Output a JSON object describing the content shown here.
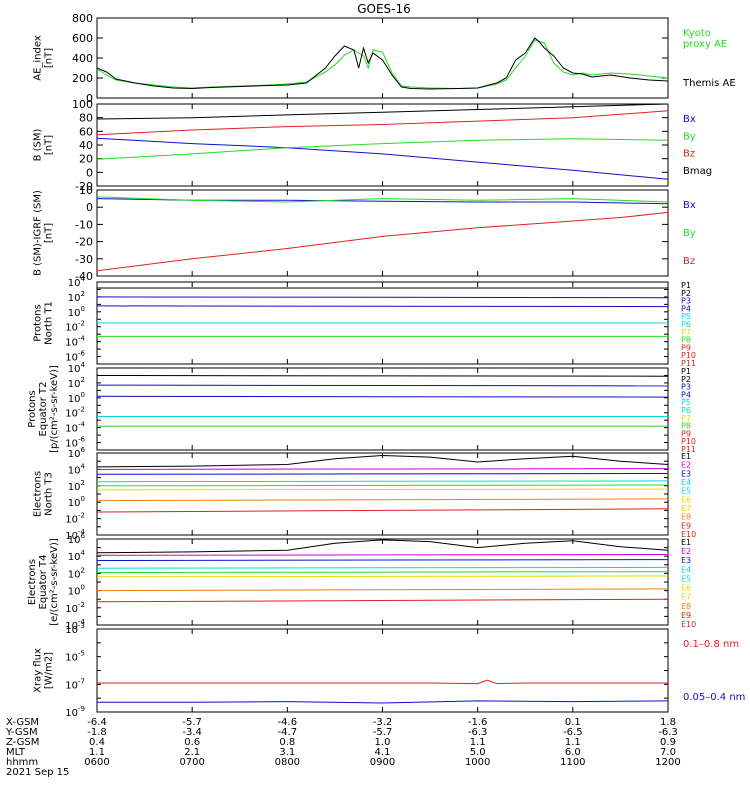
{
  "title": "GOES-16",
  "colors": {
    "black": "#000000",
    "red": "#e02020",
    "green": "#22dd22",
    "blue": "#1010d0",
    "cyan": "#00d8e0",
    "yellow": "#e8d800",
    "orange": "#f08000",
    "magenta": "#d000d0"
  },
  "chart_data": [
    {
      "type": "line",
      "id": "ae",
      "ylabel": [
        "AE_index",
        "[nT]"
      ],
      "ylim": [
        0,
        800
      ],
      "yticks": [
        0,
        200,
        400,
        600,
        800
      ],
      "ytick_labels": [
        "0",
        "200",
        "400",
        "600",
        "800"
      ],
      "series": [
        {
          "name": "Kyoto\nproxy AE",
          "color": "#22dd22",
          "x": [
            6.0,
            6.1,
            6.2,
            6.4,
            6.6,
            6.8,
            7.0,
            7.2,
            7.5,
            7.8,
            8.0,
            8.2,
            8.4,
            8.5,
            8.6,
            8.7,
            8.8,
            8.85,
            8.9,
            9.0,
            9.1,
            9.2,
            9.3,
            9.5,
            9.8,
            10.0,
            10.2,
            10.3,
            10.4,
            10.5,
            10.6,
            10.7,
            10.8,
            10.9,
            11.0,
            11.1,
            11.2,
            11.4,
            11.6,
            11.8,
            12.0
          ],
          "y": [
            290,
            230,
            180,
            150,
            130,
            110,
            100,
            110,
            120,
            130,
            140,
            160,
            260,
            330,
            430,
            480,
            420,
            300,
            480,
            460,
            250,
            120,
            110,
            100,
            95,
            100,
            140,
            180,
            300,
            420,
            580,
            550,
            350,
            260,
            230,
            250,
            230,
            250,
            240,
            220,
            200
          ]
        },
        {
          "name": "Themis AE",
          "color": "#000000",
          "x": [
            6.0,
            6.1,
            6.2,
            6.4,
            6.6,
            6.8,
            7.0,
            7.2,
            7.5,
            7.8,
            8.0,
            8.2,
            8.4,
            8.5,
            8.6,
            8.7,
            8.75,
            8.8,
            8.85,
            8.9,
            9.0,
            9.1,
            9.2,
            9.3,
            9.5,
            9.8,
            10.0,
            10.2,
            10.3,
            10.4,
            10.5,
            10.6,
            10.65,
            10.7,
            10.8,
            10.9,
            11.0,
            11.1,
            11.2,
            11.4,
            11.6,
            11.8,
            12.0
          ],
          "y": [
            300,
            260,
            190,
            150,
            120,
            100,
            95,
            105,
            115,
            125,
            130,
            150,
            300,
            420,
            520,
            480,
            300,
            500,
            350,
            450,
            380,
            230,
            110,
            95,
            90,
            95,
            100,
            150,
            200,
            380,
            450,
            600,
            560,
            500,
            420,
            300,
            250,
            240,
            210,
            230,
            200,
            180,
            170
          ]
        }
      ]
    },
    {
      "type": "line",
      "id": "bsm",
      "ylabel": [
        "B (SM)",
        "[nT]"
      ],
      "ylim": [
        -20,
        100
      ],
      "yticks": [
        -20,
        0,
        20,
        40,
        60,
        80,
        100
      ],
      "ytick_labels": [
        "-20",
        "0",
        "20",
        "40",
        "60",
        "80",
        "100"
      ],
      "series": [
        {
          "name": "Bx",
          "color": "#1010d0",
          "x": [
            6,
            7,
            8,
            9,
            10,
            11,
            12
          ],
          "y": [
            50,
            42,
            36,
            27,
            15,
            3,
            -10
          ]
        },
        {
          "name": "By",
          "color": "#22dd22",
          "x": [
            6,
            7,
            8,
            9,
            10,
            11,
            12
          ],
          "y": [
            19,
            27,
            36,
            42,
            47,
            49,
            47
          ]
        },
        {
          "name": "Bz",
          "color": "#e02020",
          "x": [
            6,
            7,
            8,
            9,
            10,
            11,
            12
          ],
          "y": [
            55,
            62,
            67,
            70,
            75,
            80,
            90
          ]
        },
        {
          "name": "Bmag",
          "color": "#000000",
          "x": [
            6,
            7,
            8,
            9,
            10,
            11,
            12
          ],
          "y": [
            78,
            80,
            84,
            88,
            92,
            96,
            100
          ]
        }
      ]
    },
    {
      "type": "line",
      "id": "bigrf",
      "ylabel": [
        "B (SM)-IGRF (SM)",
        "[nT]"
      ],
      "ylim": [
        -40,
        10
      ],
      "yticks": [
        -40,
        -30,
        -20,
        -10,
        0,
        10
      ],
      "ytick_labels": [
        "-40",
        "-30",
        "-20",
        "-10",
        "0",
        "10"
      ],
      "series": [
        {
          "name": "Bx",
          "color": "#1010d0",
          "x": [
            6,
            7,
            8,
            9,
            10,
            11,
            12
          ],
          "y": [
            5,
            4,
            4,
            3.5,
            3,
            3,
            2
          ]
        },
        {
          "name": "By",
          "color": "#22dd22",
          "x": [
            6,
            7,
            8,
            9,
            10,
            11,
            12
          ],
          "y": [
            6,
            4,
            3,
            5,
            4,
            5,
            3
          ]
        },
        {
          "name": "Bz",
          "color": "#e02020",
          "x": [
            6,
            7,
            8,
            9,
            10,
            11,
            11.5,
            12
          ],
          "y": [
            -37,
            -30,
            -24,
            -17,
            -12,
            -8,
            -6,
            -3
          ]
        }
      ]
    },
    {
      "type": "line",
      "id": "pnorth",
      "log": true,
      "ylabel": [
        "Protons",
        "North T1"
      ],
      "ylim": [
        -7,
        4
      ],
      "ytick_exp": [
        -6,
        -4,
        -2,
        0,
        2,
        4
      ],
      "channels": [
        "P1",
        "P2",
        "P3",
        "P4",
        "P5",
        "P6",
        "P7",
        "P8",
        "P9",
        "P10",
        "P11"
      ],
      "channel_colors": [
        "#000000",
        "#000000",
        "#1010d0",
        "#1010d0",
        "#00d8e0",
        "#00d8e0",
        "#e8d800",
        "#22dd22",
        "#e02020",
        "#e02020",
        "#e02020"
      ],
      "series": [
        {
          "color": "#000000",
          "x": [
            6,
            12
          ],
          "y": [
            3.2,
            3.2
          ]
        },
        {
          "color": "#1010d0",
          "x": [
            6,
            12
          ],
          "y": [
            2.0,
            1.9
          ]
        },
        {
          "color": "#1010d0",
          "x": [
            6,
            12
          ],
          "y": [
            0.8,
            0.7
          ]
        },
        {
          "color": "#00d8e0",
          "x": [
            6,
            12
          ],
          "y": [
            -1.5,
            -1.5
          ]
        },
        {
          "color": "#22dd22",
          "x": [
            6,
            12
          ],
          "y": [
            -3.3,
            -3.3
          ]
        }
      ]
    },
    {
      "type": "line",
      "id": "pequator",
      "log": true,
      "ylabel": [
        "Protons",
        "Equator T2",
        "[p/(cm²-s-sr-keV)]"
      ],
      "ylim": [
        -7,
        4
      ],
      "ytick_exp": [
        -6,
        -4,
        -2,
        0,
        2,
        4
      ],
      "channels": [
        "P1",
        "P2",
        "P3",
        "P4",
        "P5",
        "P6",
        "P7",
        "P8",
        "P9",
        "P10",
        "P11"
      ],
      "channel_colors": [
        "#000000",
        "#000000",
        "#1010d0",
        "#1010d0",
        "#00d8e0",
        "#00d8e0",
        "#e8d800",
        "#22dd22",
        "#e02020",
        "#e02020",
        "#e02020"
      ],
      "series": [
        {
          "color": "#000000",
          "x": [
            6,
            12
          ],
          "y": [
            3.0,
            2.9
          ]
        },
        {
          "color": "#1010d0",
          "x": [
            6,
            12
          ],
          "y": [
            1.7,
            1.6
          ]
        },
        {
          "color": "#1010d0",
          "x": [
            6,
            12
          ],
          "y": [
            0.2,
            0.1
          ]
        },
        {
          "color": "#00d8e0",
          "x": [
            6,
            12
          ],
          "y": [
            -2.5,
            -2.5
          ]
        },
        {
          "color": "#22dd22",
          "x": [
            6,
            12
          ],
          "y": [
            -3.8,
            -3.8
          ]
        }
      ]
    },
    {
      "type": "line",
      "id": "enorth",
      "log": true,
      "ylabel": [
        "Electrons",
        "North T3"
      ],
      "ylim": [
        -4,
        6
      ],
      "ytick_exp": [
        -4,
        -2,
        0,
        2,
        4,
        6
      ],
      "channels": [
        "E1",
        "E2",
        "E3",
        "E4",
        "E5",
        "E6",
        "E7",
        "E8",
        "E9",
        "E10"
      ],
      "channel_colors": [
        "#000000",
        "#d000d0",
        "#1010d0",
        "#00d8e0",
        "#00d8e0",
        "#e8d800",
        "#e8d800",
        "#f08000",
        "#e02020",
        "#e02020"
      ],
      "series": [
        {
          "color": "#000000",
          "x": [
            6,
            7,
            8,
            8.5,
            9,
            9.5,
            10,
            10.5,
            11,
            11.5,
            12
          ],
          "y": [
            4.3,
            4.4,
            4.6,
            5.3,
            5.7,
            5.5,
            4.9,
            5.3,
            5.6,
            5.0,
            4.6
          ]
        },
        {
          "color": "#d000d0",
          "x": [
            6,
            12
          ],
          "y": [
            4.0,
            4.1
          ]
        },
        {
          "color": "#1010d0",
          "x": [
            6,
            12
          ],
          "y": [
            3.4,
            3.5
          ]
        },
        {
          "color": "#00d8e0",
          "x": [
            6,
            12
          ],
          "y": [
            2.5,
            2.6
          ]
        },
        {
          "color": "#22dd22",
          "x": [
            6,
            12
          ],
          "y": [
            2.0,
            2.1
          ]
        },
        {
          "color": "#e8d800",
          "x": [
            6,
            12
          ],
          "y": [
            1.5,
            1.6
          ]
        },
        {
          "color": "#f08000",
          "x": [
            6,
            12
          ],
          "y": [
            0.2,
            0.4
          ]
        },
        {
          "color": "#e02020",
          "x": [
            6,
            12
          ],
          "y": [
            -1.2,
            -0.8
          ]
        }
      ]
    },
    {
      "type": "line",
      "id": "eequator",
      "log": true,
      "ylabel": [
        "Electrons",
        "Equator T4",
        "[e/(cm²-s-sr-keV)]"
      ],
      "ylim": [
        -4,
        6
      ],
      "ytick_exp": [
        -4,
        -2,
        0,
        2,
        4,
        6
      ],
      "channels": [
        "E1",
        "E2",
        "E3",
        "E4",
        "E5",
        "E6",
        "E7",
        "E8",
        "E9",
        "E10"
      ],
      "channel_colors": [
        "#000000",
        "#d000d0",
        "#1010d0",
        "#00d8e0",
        "#00d8e0",
        "#e8d800",
        "#e8d800",
        "#f08000",
        "#e02020",
        "#e02020"
      ],
      "series": [
        {
          "color": "#000000",
          "x": [
            6,
            7,
            8,
            8.5,
            9,
            9.5,
            10,
            10.5,
            11,
            11.5,
            12
          ],
          "y": [
            4.4,
            4.5,
            4.7,
            5.5,
            5.9,
            5.7,
            5.0,
            5.5,
            5.8,
            5.1,
            4.7
          ]
        },
        {
          "color": "#d000d0",
          "x": [
            6,
            12
          ],
          "y": [
            4.1,
            4.2
          ]
        },
        {
          "color": "#1010d0",
          "x": [
            6,
            12
          ],
          "y": [
            3.5,
            3.6
          ]
        },
        {
          "color": "#00d8e0",
          "x": [
            6,
            12
          ],
          "y": [
            2.6,
            2.7
          ]
        },
        {
          "color": "#22dd22",
          "x": [
            6,
            12
          ],
          "y": [
            2.1,
            2.2
          ]
        },
        {
          "color": "#e8d800",
          "x": [
            6,
            12
          ],
          "y": [
            1.6,
            1.7
          ]
        },
        {
          "color": "#f08000",
          "x": [
            6,
            12
          ],
          "y": [
            0.0,
            0.2
          ]
        },
        {
          "color": "#e02020",
          "x": [
            6,
            12
          ],
          "y": [
            -1.3,
            -1.0
          ]
        }
      ]
    },
    {
      "type": "line",
      "id": "xray",
      "log": true,
      "ylabel": [
        "Xray flux",
        "[W/m2]"
      ],
      "ylim": [
        -9,
        -3
      ],
      "ytick_exp": [
        -9,
        -7,
        -5,
        -3
      ],
      "series": [
        {
          "name": "0.1–0.8 nm",
          "color": "#e02020",
          "x": [
            6,
            7,
            8,
            9,
            9.5,
            10,
            10.1,
            10.2,
            10.5,
            11,
            11.5,
            12
          ],
          "y": [
            -6.9,
            -6.9,
            -6.9,
            -6.9,
            -6.9,
            -6.95,
            -6.7,
            -6.95,
            -6.9,
            -6.9,
            -6.9,
            -6.9
          ]
        },
        {
          "name": "0.05–0.4 nm",
          "color": "#1010d0",
          "x": [
            6,
            7,
            8,
            9,
            10,
            11,
            12
          ],
          "y": [
            -8.3,
            -8.3,
            -8.25,
            -8.35,
            -8.2,
            -8.25,
            -8.2
          ]
        }
      ]
    }
  ],
  "x_axis": {
    "xlim": [
      6,
      12
    ],
    "ticks": [
      6,
      7,
      8,
      9,
      10,
      11,
      12
    ]
  },
  "orbit_table": {
    "rows": [
      {
        "label": "X-GSM",
        "values": [
          "-6.4",
          "-5.7",
          "-4.6",
          "-3.2",
          "-1.6",
          "0.1",
          "1.8"
        ]
      },
      {
        "label": "Y-GSM",
        "values": [
          "-1.8",
          "-3.4",
          "-4.7",
          "-5.7",
          "-6.3",
          "-6.5",
          "-6.3"
        ]
      },
      {
        "label": "Z-GSM",
        "values": [
          "0.4",
          "0.6",
          "0.8",
          "1.0",
          "1.1",
          "1.1",
          "0.9"
        ]
      },
      {
        "label": "MLT",
        "values": [
          "1.1",
          "2.1",
          "3.1",
          "4.1",
          "5.0",
          "6.0",
          "7.0"
        ]
      },
      {
        "label": "hhmm",
        "values": [
          "0600",
          "0700",
          "0800",
          "0900",
          "1000",
          "1100",
          "1200"
        ]
      }
    ],
    "date": "2021 Sep 15"
  }
}
